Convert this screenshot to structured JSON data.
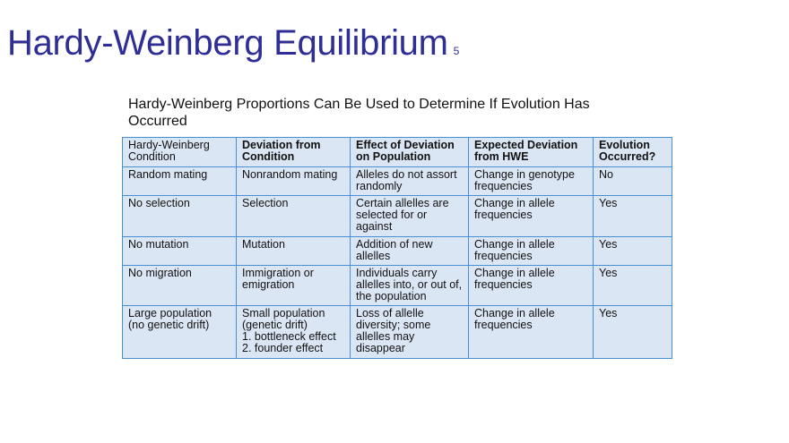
{
  "title": "Hardy-Weinberg Equilibrium",
  "slide_number": "5",
  "subtitle": "Hardy-Weinberg Proportions Can Be Used to Determine If Evolution Has Occurred",
  "table": {
    "headers": [
      "Hardy-Weinberg Condition",
      "Deviation from Condition",
      "Effect of Deviation on Population",
      "Expected Deviation from HWE",
      "Evolution Occurred?"
    ],
    "rows": [
      [
        "Random mating",
        "Nonrandom mating",
        "Alleles do not assort randomly",
        "Change in genotype frequencies",
        "No"
      ],
      [
        "No selection",
        "Selection",
        "Certain allelles are selected for or against",
        "Change in allele frequencies",
        "Yes"
      ],
      [
        "No mutation",
        "Mutation",
        "Addition of new allelles",
        "Change in allele frequencies",
        "Yes"
      ],
      [
        "No migration",
        "Immigration or emigration",
        "Individuals carry allelles into, or out of, the population",
        "Change in allele frequencies",
        "Yes"
      ],
      [
        "Large population (no genetic drift)",
        "Small population (genetic drift)\n1. bottleneck effect\n2. founder effect",
        "Loss of allelle diversity; some allelles may disappear",
        "Change in allele frequencies",
        "Yes"
      ]
    ]
  },
  "colors": {
    "title": "#2e2e96",
    "table_bg": "#dbe6f4",
    "table_border": "#4a8fd0"
  }
}
